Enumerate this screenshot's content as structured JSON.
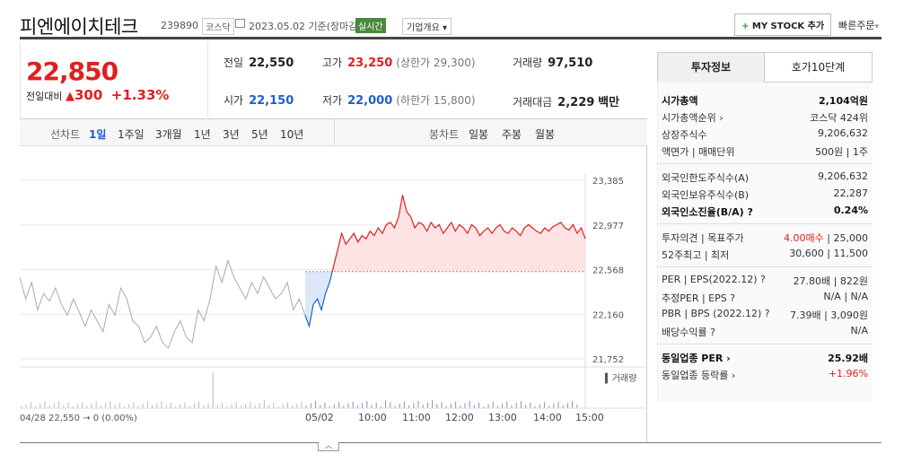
{
  "header": {
    "name": "피엔에이치테크",
    "code": "239890",
    "market": "코스닥",
    "date": "2023.05.02",
    "basis": "기준(장마감)",
    "realtime": "실시간",
    "company_info": "기업개요",
    "mystock_plus": "+",
    "mystock_label": "MY STOCK 추가",
    "quick_order": "빠른주문"
  },
  "price": {
    "current": "22,850",
    "change_label": "전일대비",
    "change_arrow": "▲",
    "change_amount": "300",
    "change_pct": "+1.33%"
  },
  "stats": {
    "prev_label": "전일",
    "prev_value": "22,550",
    "high_label": "고가",
    "high_value": "23,250",
    "upper_limit": "(상한가 29,300)",
    "volume_label": "거래량",
    "volume_value": "97,510",
    "open_label": "시가",
    "open_value": "22,150",
    "low_label": "저가",
    "low_value": "22,000",
    "lower_limit": "(하한가 15,800)",
    "amount_label": "거래대금",
    "amount_value": "2,229",
    "amount_unit": "백만"
  },
  "periods": {
    "line_chart": "선차트",
    "items": [
      "1일",
      "1주일",
      "3개월",
      "1년",
      "3년",
      "5년",
      "10년"
    ],
    "selected": 0,
    "candle_chart": "봉차트",
    "candles": [
      "일봉",
      "주봉",
      "월봉"
    ]
  },
  "chart_data": {
    "type": "line",
    "title": "",
    "xlabel": "",
    "ylabel": "",
    "baseline": 22550,
    "ylim": [
      21752,
      23385
    ],
    "y_ticks": [
      "23,385",
      "22,977",
      "22,568",
      "22,160",
      "21,752"
    ],
    "x_ticks": [
      "05/02",
      "10:00",
      "11:00",
      "12:00",
      "13:00",
      "14:00",
      "15:00"
    ],
    "volume_label": "거래량",
    "footer": "04/28 22,550 → 0 (0.00%)",
    "series": [
      {
        "values": [
          22500,
          22300,
          22450,
          22200,
          22350,
          22280,
          22400,
          22250,
          22150,
          22300,
          22180,
          22050,
          22200,
          22100,
          22000,
          22250,
          22150,
          22400,
          22300,
          22100,
          22050,
          21900,
          21950,
          22050,
          21900,
          21850,
          22000,
          22100,
          21950,
          21900,
          22200,
          22100,
          22300,
          22600,
          22450,
          22650,
          22500,
          22400,
          22300,
          22450,
          22350,
          22500,
          22400,
          22300,
          22350,
          22450,
          22200,
          22300,
          22150
        ]
      },
      {
        "values": [
          22150,
          22050,
          22250,
          22300,
          22200,
          22350,
          22450,
          22600,
          22750,
          22900,
          22800,
          22850,
          22900,
          22820,
          22880,
          22850,
          22920,
          22880,
          22950,
          22900,
          22980,
          23000,
          22950,
          23050,
          23250,
          23100,
          23050,
          22950,
          23000,
          22980,
          22920,
          23000,
          22950,
          22980,
          22900,
          22950,
          23000,
          22920,
          22980,
          22950,
          22900,
          22980,
          22950,
          22880,
          22920,
          22950,
          22900,
          22950,
          22980,
          22920,
          22900,
          22950,
          22920,
          22880,
          22950,
          22980,
          22950,
          22920,
          22900,
          22950,
          22920,
          22960,
          22980,
          23000,
          22950,
          22930,
          22980,
          22900,
          22950,
          22850
        ]
      }
    ]
  },
  "invest": {
    "tab_on": "투자정보",
    "tab_off": "호가10단계",
    "rows1": [
      {
        "k": "시가총액",
        "v": "2,104억원",
        "bold": true
      },
      {
        "k": "시가총액순위 ›",
        "v": "코스닥 424위"
      },
      {
        "k": "상장주식수",
        "v": "9,206,632"
      },
      {
        "k": "액면가 | 매매단위",
        "v": "500원 | 1주"
      }
    ],
    "rows2": [
      {
        "k": "외국인한도주식수(A)",
        "v": "9,206,632"
      },
      {
        "k": "외국인보유주식수(B)",
        "v": "22,287"
      },
      {
        "k": "외국인소진율(B/A) ?",
        "v": "0.24%",
        "bold": true
      }
    ],
    "opinion_label": "투자의견 | 목표주가",
    "opinion_value": "4.00매수",
    "target_value": " | 25,000",
    "w52_label": "52주최고 | 최저",
    "w52_value": "30,600 | 11,500",
    "rows4": [
      {
        "k": "PER | EPS(2022.12) ?",
        "v": "27.80배 | 822원"
      },
      {
        "k": "추정PER | EPS ?",
        "v": "N/A | N/A"
      },
      {
        "k": "PBR | BPS (2022.12) ?",
        "v": "7.39배 | 3,090원"
      },
      {
        "k": "배당수익률 ?",
        "v": "N/A"
      }
    ],
    "sector_per_label": "동일업종 PER ›",
    "sector_per_value": "25.92배",
    "sector_rate_label": "동일업종 등락률 ›",
    "sector_rate_value": "+1.96%"
  },
  "colors": {
    "up": "#e01f1f",
    "down": "#1f5fc8",
    "prev": "#aaaaaa"
  }
}
